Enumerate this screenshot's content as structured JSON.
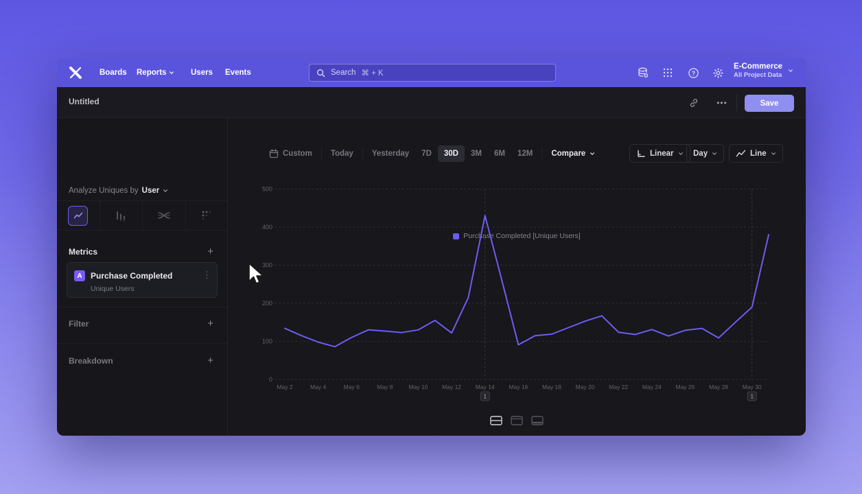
{
  "nav": {
    "brand": "Mixpanel",
    "items": [
      "Boards",
      "Reports",
      "Users",
      "Events"
    ],
    "search": {
      "placeholder": "Search",
      "shortcut": "⌘ + K"
    },
    "project": {
      "name": "E-Commerce",
      "scope": "All Project Data"
    }
  },
  "header": {
    "title": "Untitled",
    "ellipsis": "•••",
    "save_label": "Save"
  },
  "sidebar": {
    "analyze_prefix": "Analyze Uniques by",
    "analyze_value": "User",
    "metrics_label": "Metrics",
    "add_label": "+",
    "metric": {
      "badge": "A",
      "name": "Purchase Completed",
      "measure": "Unique Users",
      "kebab": "⋮"
    },
    "filter_label": "Filter",
    "breakdown_label": "Breakdown"
  },
  "toolbar": {
    "ranges": [
      "Custom",
      "Today",
      "Yesterday",
      "7D",
      "30D",
      "3M",
      "6M",
      "12M"
    ],
    "selected_range": "30D",
    "compare_label": "Compare",
    "scale_label": "Linear",
    "interval_label": "Day",
    "chart_type_label": "Line"
  },
  "colors": {
    "accent": "#6f5cf1",
    "nav": "#5a54dc",
    "save_button": "#8f8ef1",
    "legend_swatch": "#6a5cf0"
  },
  "chart_data": {
    "type": "line",
    "legend": [
      "Purchase Completed [Unique Users]"
    ],
    "x": [
      "May 2",
      "May 3",
      "May 4",
      "May 5",
      "May 6",
      "May 7",
      "May 8",
      "May 9",
      "May 10",
      "May 11",
      "May 12",
      "May 13",
      "May 14",
      "May 15",
      "May 16",
      "May 17",
      "May 18",
      "May 19",
      "May 20",
      "May 21",
      "May 22",
      "May 23",
      "May 24",
      "May 25",
      "May 26",
      "May 27",
      "May 28",
      "May 29",
      "May 30",
      "May 31"
    ],
    "xticks_shown": [
      "May 2",
      "May 4",
      "May 6",
      "May 8",
      "May 10",
      "May 12",
      "May 14",
      "May 16",
      "May 18",
      "May 20",
      "May 22",
      "May 24",
      "May 26",
      "May 28",
      "May 30"
    ],
    "series": [
      {
        "name": "Purchase Completed [Unique Users]",
        "color": "#6f5cf1",
        "values": [
          134,
          115,
          98,
          86,
          110,
          130,
          127,
          123,
          130,
          155,
          122,
          215,
          430,
          262,
          91,
          115,
          119,
          136,
          153,
          167,
          124,
          118,
          131,
          114,
          129,
          134,
          109,
          150,
          190,
          380
        ]
      }
    ],
    "ylim": [
      0,
      500
    ],
    "yticks": [
      0,
      100,
      200,
      300,
      400,
      500
    ],
    "grid": "horizontal-dashed",
    "legend_position": "top-center",
    "annotations": [
      {
        "x": "May 14",
        "label": "1"
      },
      {
        "x": "May 30",
        "label": "1"
      }
    ]
  }
}
